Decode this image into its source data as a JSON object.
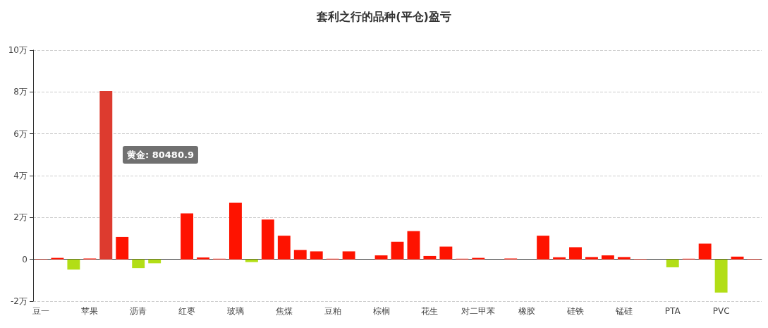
{
  "chart_data": {
    "type": "bar",
    "title": "套利之行的品种(平仓)盈亏",
    "categories": [
      "豆一",
      null,
      null,
      "苹果",
      null,
      null,
      "沥青",
      null,
      null,
      "红枣",
      null,
      null,
      "玻璃",
      null,
      null,
      "焦煤",
      null,
      null,
      "豆粕",
      null,
      null,
      "棕榈",
      null,
      null,
      "花生",
      null,
      null,
      "对二甲苯",
      null,
      null,
      "橡胶",
      null,
      null,
      "硅铁",
      null,
      null,
      "锰硅",
      null,
      null,
      "PTA",
      null,
      null,
      "PVC",
      null,
      null
    ],
    "values": [
      0.01,
      0.07,
      -0.49,
      0.04,
      8.04809,
      1.07,
      -0.42,
      -0.19,
      null,
      2.2,
      0.09,
      0.03,
      2.7,
      -0.13,
      1.9,
      1.13,
      0.45,
      0.38,
      0.03,
      0.38,
      null,
      0.19,
      0.84,
      1.35,
      0.16,
      0.61,
      0.03,
      0.07,
      0,
      0.04,
      0,
      1.13,
      0.1,
      0.58,
      0.11,
      0.19,
      0.11,
      0.02,
      null,
      -0.38,
      0.03,
      0.75,
      -1.59,
      0.13,
      0.02
    ],
    "colors": [
      "#fe1300",
      "#fe1300",
      "#b2de16",
      "#fe1300",
      "#dd3b2f",
      "#fe1300",
      "#b2de16",
      "#b2de16",
      "#fe1300",
      "#fe1300",
      "#fe1300",
      "#fe1300",
      "#fe1300",
      "#b2de16",
      "#fe1300",
      "#fe1300",
      "#fe1300",
      "#fe1300",
      "#fe1300",
      "#fe1300",
      "#b2de16",
      "#fe1300",
      "#fe1300",
      "#fe1300",
      "#fe1300",
      "#fe1300",
      "#fe1300",
      "#fe1300",
      "#fe1300",
      "#fe1300",
      "#fe1300",
      "#fe1300",
      "#fe1300",
      "#fe1300",
      "#fe1300",
      "#fe1300",
      "#fe1300",
      "#fe1300",
      "#fe1300",
      "#b2de16",
      "#fe1300",
      "#fe1300",
      "#b2de16",
      "#fe1300",
      "#fe1300"
    ],
    "ylim": [
      -2,
      10
    ],
    "yticks": [
      {
        "value": -2,
        "label": "-2万"
      },
      {
        "value": 0,
        "label": "0"
      },
      {
        "value": 2,
        "label": "2万"
      },
      {
        "value": 4,
        "label": "4万"
      },
      {
        "value": 6,
        "label": "6万"
      },
      {
        "value": 8,
        "label": "8万"
      },
      {
        "value": 10,
        "label": "10万"
      }
    ],
    "grid": "y",
    "annotations": [
      "黄金: 80480.9"
    ]
  }
}
